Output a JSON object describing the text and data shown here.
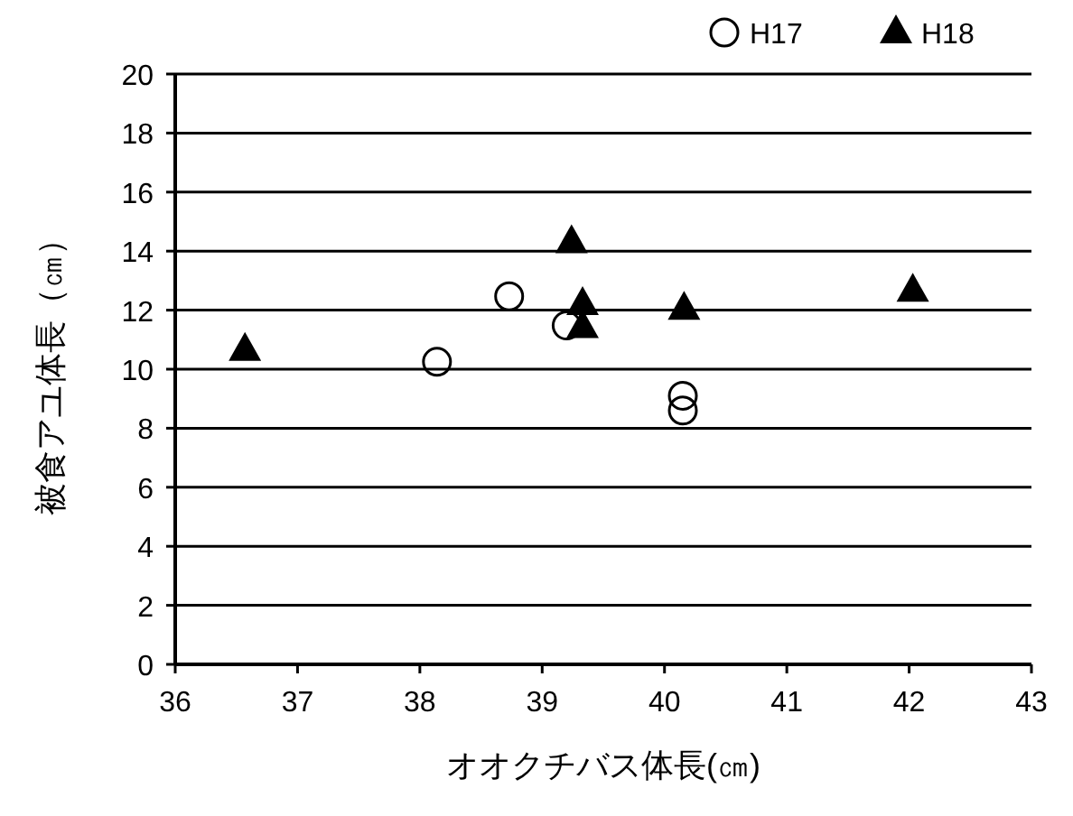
{
  "chart_data": {
    "type": "scatter",
    "xlabel": "オオクチバス体長(㎝)",
    "ylabel": "被食アユ体長（㎝）",
    "xlim": [
      36,
      43
    ],
    "xticks": [
      36,
      37,
      38,
      39,
      40,
      41,
      42,
      43
    ],
    "ylim": [
      0,
      20
    ],
    "yticks": [
      0,
      2,
      4,
      6,
      8,
      10,
      12,
      14,
      16,
      18,
      20
    ],
    "grid": "y",
    "legend": "top right",
    "series": [
      {
        "name": "H17",
        "color": "#000000",
        "marker": "circle",
        "x": [
          38.14,
          38.73,
          39.2,
          40.15,
          40.15
        ],
        "values": [
          10.25,
          12.47,
          11.48,
          9.1,
          8.6
        ]
      },
      {
        "name": "H18",
        "color": "#000000",
        "marker": "triangle",
        "x": [
          36.57,
          39.24,
          39.33,
          39.33,
          40.16,
          42.03
        ],
        "values": [
          10.65,
          14.3,
          12.2,
          11.42,
          12.04,
          12.65
        ]
      }
    ]
  }
}
